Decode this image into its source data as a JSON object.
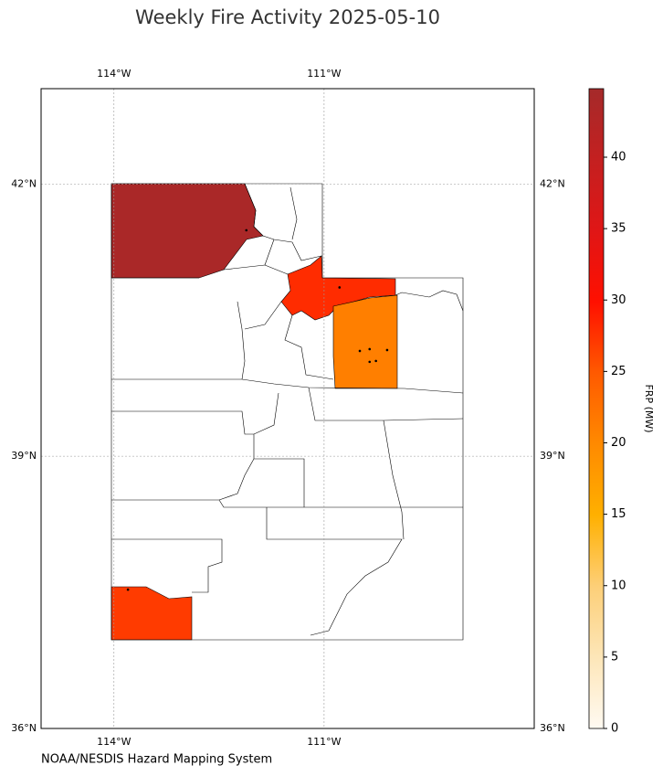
{
  "chart_data": {
    "type": "map",
    "title": "Weekly Fire Activity 2025-05-10",
    "source": "NOAA/NESDIS Hazard Mapping System",
    "xlim": [
      -115.04,
      -108.0
    ],
    "ylim": [
      36,
      43.05
    ],
    "xticks": [
      {
        "value": -114,
        "label": "114°W"
      },
      {
        "value": -111,
        "label": "111°W"
      }
    ],
    "yticks": [
      {
        "value": 42,
        "label": "42°N"
      },
      {
        "value": 39,
        "label": "39°N"
      },
      {
        "value": 36,
        "label": "36°N"
      }
    ],
    "grid": true,
    "colorbar": {
      "label": "FRP (MW)",
      "clim": [
        0,
        44.8
      ],
      "ticks": [
        0,
        5,
        10,
        15,
        20,
        25,
        30,
        35,
        40
      ],
      "colormap": [
        "#fffaf2",
        "#fde6b8",
        "#fdcf78",
        "#ffb000",
        "#ff8a00",
        "#ff5a00",
        "#ff1000",
        "#e01616",
        "#c42020",
        "#a52a2a"
      ]
    },
    "fire_regions": [
      {
        "frp": 44
      },
      {
        "frp": 28
      },
      {
        "frp": 21
      },
      {
        "frp": 27
      }
    ],
    "fire_points": [
      {
        "lon": -112.11,
        "lat": 41.49
      },
      {
        "lon": -110.78,
        "lat": 40.86
      },
      {
        "lon": -110.49,
        "lat": 40.16
      },
      {
        "lon": -110.35,
        "lat": 40.18
      },
      {
        "lon": -110.1,
        "lat": 40.17
      },
      {
        "lon": -110.35,
        "lat": 40.04
      },
      {
        "lon": -110.26,
        "lat": 40.05
      },
      {
        "lon": -113.8,
        "lat": 37.53
      }
    ]
  }
}
